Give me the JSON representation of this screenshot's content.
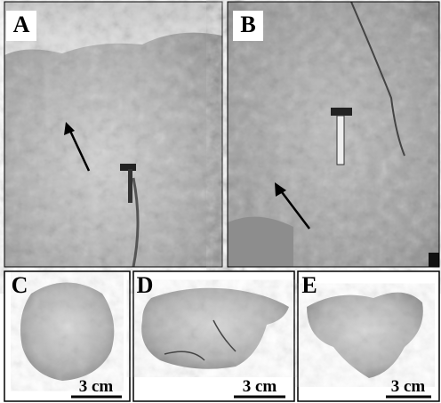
{
  "panels": [
    {
      "label": "A"
    },
    {
      "label": "B"
    },
    {
      "label": "C",
      "scale": "3 cm"
    },
    {
      "label": "D",
      "scale": "3 cm"
    },
    {
      "label": "E",
      "scale": "3 cm"
    }
  ]
}
